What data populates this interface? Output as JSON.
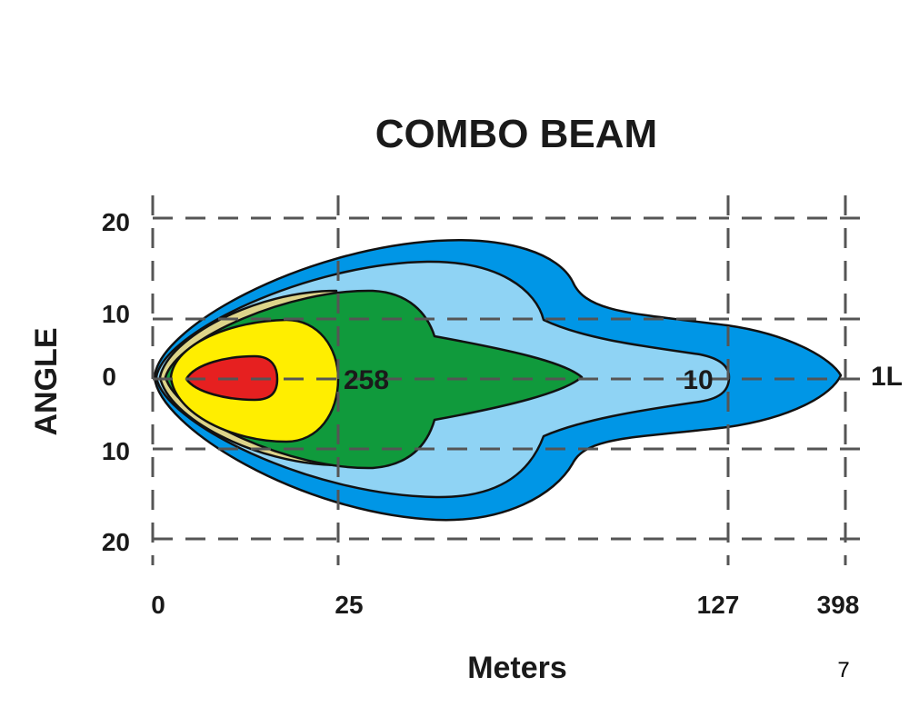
{
  "page_number": "7",
  "chart_data": {
    "type": "area",
    "title": "COMBO  BEAM",
    "xlabel": "Meters",
    "ylabel": "ANGLE",
    "x_ticks": [
      "0",
      "25",
      "127",
      "398"
    ],
    "y_ticks": [
      "20",
      "10",
      "0",
      "10",
      "20"
    ],
    "grid": true,
    "zones": [
      {
        "name": "outer",
        "reach_m": 398,
        "color": "#0096e6"
      },
      {
        "name": "light-blue",
        "reach_m": 127,
        "label": "10",
        "color": "#8fd3f4"
      },
      {
        "name": "green",
        "reach_m": 25,
        "label": "258",
        "color": "#109a3c"
      },
      {
        "name": "tan",
        "color": "#ddd48a"
      },
      {
        "name": "yellow",
        "color": "#ffee00"
      },
      {
        "name": "red",
        "color": "#e62020"
      }
    ],
    "annotations": [
      {
        "text": "258",
        "zone": "green"
      },
      {
        "text": "10",
        "zone": "light-blue"
      },
      {
        "text": "1L",
        "at_m": 398
      }
    ]
  }
}
